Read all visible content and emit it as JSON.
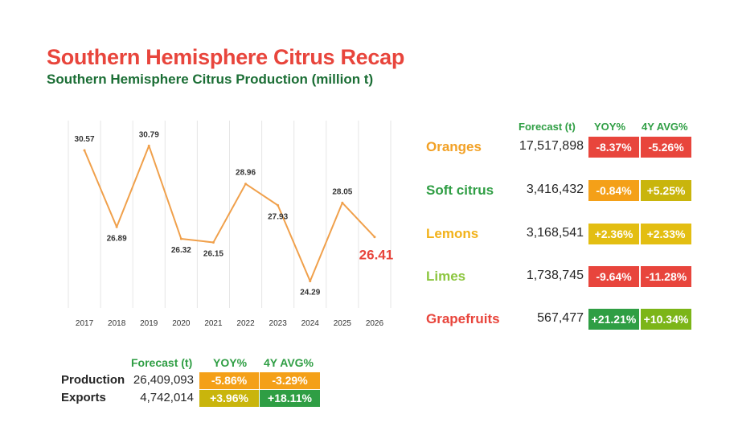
{
  "header": {
    "title": "Southern Hemisphere Citrus Recap",
    "subtitle": "Southern Hemisphere Citrus Production (million t)"
  },
  "chart_data": {
    "type": "line",
    "categories": [
      "2017",
      "2018",
      "2019",
      "2020",
      "2021",
      "2022",
      "2023",
      "2024",
      "2025",
      "2026"
    ],
    "values": [
      30.57,
      26.89,
      30.79,
      26.32,
      26.15,
      28.96,
      27.93,
      24.29,
      28.05,
      26.41
    ],
    "data_labels": [
      "30.57",
      "26.89",
      "30.79",
      "26.32",
      "26.15",
      "28.96",
      "27.93",
      "24.29",
      "28.05",
      "26.41"
    ],
    "highlight_last": true,
    "ylim": [
      23,
      32
    ],
    "grid": "vertical",
    "colors": {
      "line": "#f0a04b",
      "highlight": "#e8453c",
      "grid": "#e6e6e6"
    }
  },
  "fruit_table": {
    "headers": {
      "forecast": "Forecast (t)",
      "yoy": "YOY%",
      "avg": "4Y AVG%"
    },
    "rows": [
      {
        "name": "Oranges",
        "name_color": "#f2a126",
        "forecast": "17,517,898",
        "yoy": "-8.37%",
        "yoy_color": "#e8453c",
        "avg": "-5.26%",
        "avg_color": "#e8453c"
      },
      {
        "name": "Soft citrus",
        "name_color": "#2f9e44",
        "forecast": "3,416,432",
        "yoy": "-0.84%",
        "yoy_color": "#f4a018",
        "avg": "+5.25%",
        "avg_color": "#c9b50c"
      },
      {
        "name": "Lemons",
        "name_color": "#f2b21a",
        "forecast": "3,168,541",
        "yoy": "+2.36%",
        "yoy_color": "#e3be12",
        "avg": "+2.33%",
        "avg_color": "#e3be12"
      },
      {
        "name": "Limes",
        "name_color": "#8cc63f",
        "forecast": "1,738,745",
        "yoy": "-9.64%",
        "yoy_color": "#e8453c",
        "avg": "-11.28%",
        "avg_color": "#e8453c"
      },
      {
        "name": "Grapefruits",
        "name_color": "#e8453c",
        "forecast": "567,477",
        "yoy": "+21.21%",
        "yoy_color": "#2f9e44",
        "avg": "+10.34%",
        "avg_color": "#7cb518"
      }
    ]
  },
  "summary_table": {
    "headers": {
      "forecast": "Forecast (t)",
      "yoy": "YOY%",
      "avg": "4Y AVG%"
    },
    "rows": [
      {
        "name": "Production",
        "forecast": "26,409,093",
        "yoy": "-5.86%",
        "yoy_color": "#f4a018",
        "avg": "-3.29%",
        "avg_color": "#f4a018"
      },
      {
        "name": "Exports",
        "forecast": "4,742,014",
        "yoy": "+3.96%",
        "yoy_color": "#c9b50c",
        "avg": "+18.11%",
        "avg_color": "#2f9e44"
      }
    ]
  }
}
